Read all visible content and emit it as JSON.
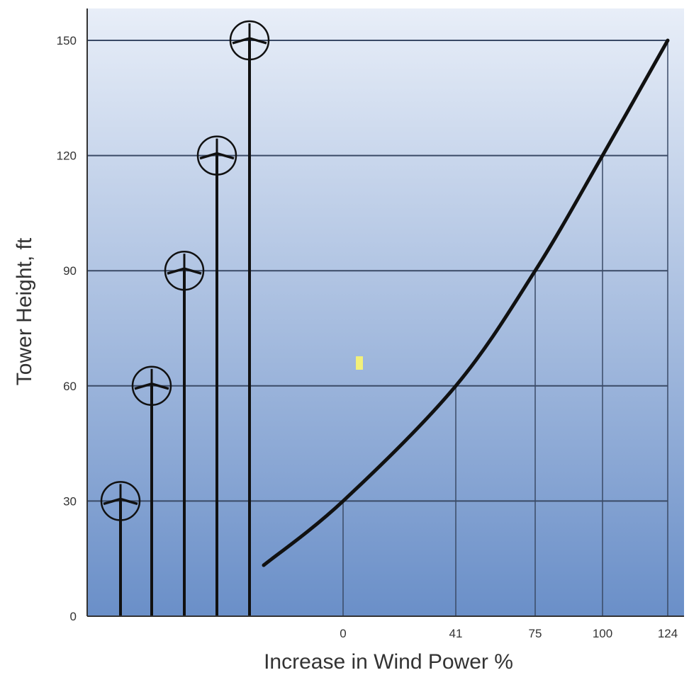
{
  "chart_data": {
    "type": "line",
    "title": "",
    "xlabel": "Increase in Wind Power %",
    "ylabel": "Tower Height, ft",
    "ylim": [
      0,
      150
    ],
    "yticks": [
      0,
      30,
      60,
      90,
      120,
      150
    ],
    "xticks": [
      "0",
      "41",
      "75",
      "100",
      "124"
    ],
    "grid": true,
    "series": [
      {
        "points": [
          {
            "x": 0,
            "y": 30
          },
          {
            "x": 41,
            "y": 60
          },
          {
            "x": 75,
            "y": 90
          },
          {
            "x": 100,
            "y": 120
          },
          {
            "x": 124,
            "y": 150
          }
        ]
      }
    ],
    "towers": [
      30,
      60,
      90,
      120,
      150
    ],
    "colors": {
      "background_top": "#e8eef8",
      "background_bottom": "#6a8fc8",
      "line": "#111111",
      "grid": "#3a4a66",
      "highlight": "#f2f07a"
    }
  }
}
